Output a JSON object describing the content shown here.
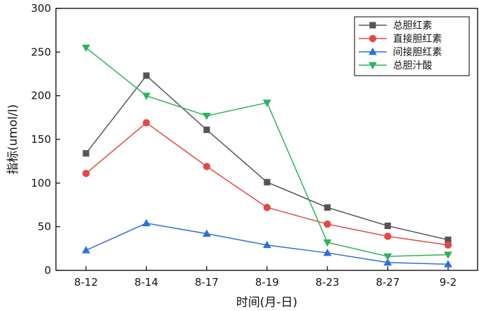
{
  "chart_data": {
    "type": "line",
    "title": "",
    "xlabel": "时间(月-日)",
    "ylabel": "指标(umol/l)",
    "categories": [
      "8-12",
      "8-14",
      "8-17",
      "8-19",
      "8-23",
      "8-27",
      "9-2"
    ],
    "ylim": [
      0,
      300
    ],
    "yticks": [
      0,
      50,
      100,
      150,
      200,
      250,
      300
    ],
    "grid": false,
    "legend_position": "top-right",
    "series": [
      {
        "name": "总胆红素",
        "color": "#555555",
        "marker": "square",
        "values": [
          134,
          223,
          161,
          101,
          72,
          51,
          35
        ]
      },
      {
        "name": "直接胆红素",
        "color": "#e04b45",
        "marker": "circle",
        "values": [
          111,
          169,
          119,
          72,
          53,
          39,
          29
        ]
      },
      {
        "name": "间接胆红素",
        "color": "#2f6fd6",
        "marker": "triangle-up",
        "values": [
          23,
          54,
          42,
          29,
          20,
          9,
          7
        ]
      },
      {
        "name": "总胆汁酸",
        "color": "#2fb35a",
        "marker": "triangle-down",
        "values": [
          255,
          200,
          177,
          192,
          32,
          16,
          18
        ]
      }
    ]
  }
}
